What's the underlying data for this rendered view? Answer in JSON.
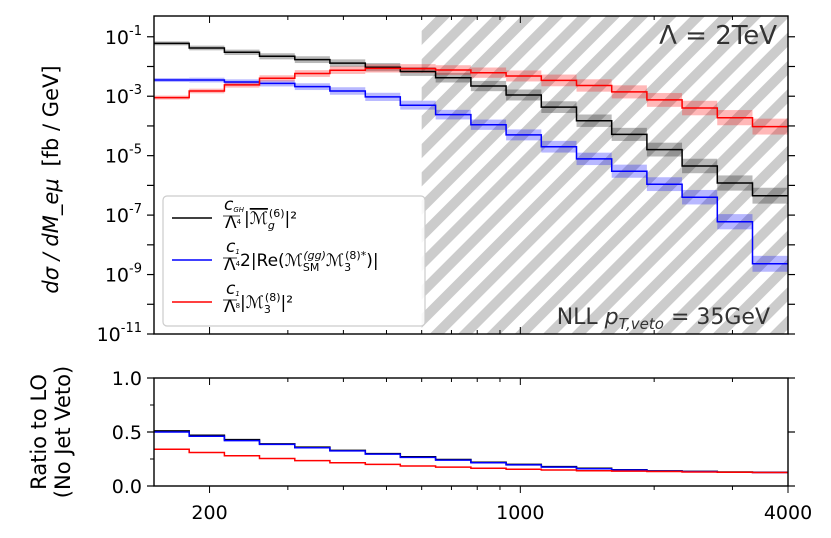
{
  "chart_data": [
    {
      "type": "line",
      "subtype": "step-histogram",
      "yscale": "log",
      "xscale": "log",
      "xlim": [
        150,
        4000
      ],
      "ylim": [
        1e-11,
        0.5
      ],
      "ylabel_main": "dσ / dM_eμ",
      "ylabel_unit": "[fb / GeV]",
      "y_tick_labels": [
        "10^-1",
        "10^-3",
        "10^-5",
        "10^-7",
        "10^-9",
        "10^-11"
      ],
      "y_tick_values": [
        0.1,
        0.001,
        1e-05,
        1e-07,
        1e-09,
        1e-11
      ],
      "hatched_region": {
        "x_from": 600,
        "x_to": 4000
      },
      "annotations": {
        "lambda": "Λ = 2TeV",
        "nll_prefix": "NLL ",
        "nll_pt": "p",
        "nll_sub": "T,veto",
        "nll_value": " = 35GeV"
      },
      "bin_edges": [
        150,
        180,
        216,
        259,
        311,
        373,
        448,
        537,
        645,
        774,
        929,
        1115,
        1338,
        1605,
        1926,
        2311,
        2773,
        3328,
        4000
      ],
      "series": [
        {
          "name": "c_GH / Λ^4 |M̄_g^(6)|^2",
          "legend_frac": [
            "c",
            "GH",
            "Λ",
            "4"
          ],
          "legend_body": "|",
          "legend_m": "ℳ",
          "legend_sub": "g",
          "legend_sup": "(6)",
          "legend_tail": "|²",
          "color": "#000000",
          "values": [
            0.06,
            0.042,
            0.03,
            0.022,
            0.017,
            0.013,
            0.0095,
            0.0068,
            0.0042,
            0.0022,
            0.0011,
            0.00043,
            0.00015,
            5.2e-05,
            1.6e-05,
            4.5e-06,
            1.2e-06,
            4.5e-07
          ]
        },
        {
          "name": "c_1 / Λ^4 2|Re(M_SM^(gg) M_3^(8)*)|",
          "legend_frac": [
            "c",
            "1",
            "Λ",
            "4"
          ],
          "legend_body": "2|Re(",
          "legend_m": "ℳ",
          "legend_sub": "SM",
          "legend_sup": "(gg)",
          "legend_m2": "ℳ",
          "legend_sub2": "3",
          "legend_sup2": "(8)*",
          "legend_tail": ")|",
          "color": "#0000ff",
          "values": [
            0.0035,
            0.0035,
            0.003,
            0.0027,
            0.0021,
            0.0015,
            0.00095,
            0.0005,
            0.00024,
            0.00011,
            5e-05,
            2e-05,
            7.8e-06,
            3e-06,
            1.1e-06,
            4e-07,
            6e-08,
            2.3e-09
          ]
        },
        {
          "name": "c_1 / Λ^8 |M_3^(8)|^2",
          "legend_frac": [
            "c",
            "1",
            "Λ",
            "8"
          ],
          "legend_body": "|",
          "legend_m": "ℳ",
          "legend_sub": "3",
          "legend_sup": "(8)",
          "legend_tail": "|²",
          "color": "#ff0000",
          "values": [
            0.0009,
            0.0015,
            0.0024,
            0.004,
            0.0058,
            0.0075,
            0.0086,
            0.0085,
            0.0076,
            0.0062,
            0.0048,
            0.0034,
            0.0023,
            0.0014,
            0.00075,
            0.0004,
            0.00019,
            9.5e-05
          ]
        }
      ]
    },
    {
      "type": "line",
      "subtype": "step-histogram",
      "xscale": "log",
      "xlim": [
        150,
        4000
      ],
      "ylim": [
        0,
        1
      ],
      "ylabel_line1": "Ratio to LO",
      "ylabel_line2": "(No Jet Veto)",
      "y_tick_labels": [
        "1.0",
        "0.5",
        "0.0"
      ],
      "y_tick_values": [
        1.0,
        0.5,
        0.0
      ],
      "x_tick_labels": [
        "200",
        "1000",
        "4000"
      ],
      "x_tick_values": [
        200,
        1000,
        4000
      ],
      "bin_edges": [
        150,
        180,
        216,
        259,
        311,
        373,
        448,
        537,
        645,
        774,
        929,
        1115,
        1338,
        1605,
        1926,
        2311,
        2773,
        3328,
        4000
      ],
      "series": [
        {
          "name": "black",
          "color": "#000000",
          "values": [
            0.51,
            0.47,
            0.43,
            0.39,
            0.36,
            0.33,
            0.3,
            0.27,
            0.245,
            0.22,
            0.2,
            0.18,
            0.165,
            0.15,
            0.14,
            0.135,
            0.13,
            0.127
          ]
        },
        {
          "name": "blue",
          "color": "#0000ff",
          "values": [
            0.5,
            0.46,
            0.42,
            0.385,
            0.355,
            0.325,
            0.295,
            0.265,
            0.24,
            0.215,
            0.195,
            0.175,
            0.16,
            0.148,
            0.138,
            0.133,
            0.128,
            0.125
          ]
        },
        {
          "name": "red",
          "color": "#ff0000",
          "values": [
            0.34,
            0.31,
            0.28,
            0.255,
            0.235,
            0.215,
            0.2,
            0.185,
            0.175,
            0.165,
            0.155,
            0.148,
            0.142,
            0.138,
            0.134,
            0.13,
            0.127,
            0.125
          ]
        }
      ]
    }
  ]
}
